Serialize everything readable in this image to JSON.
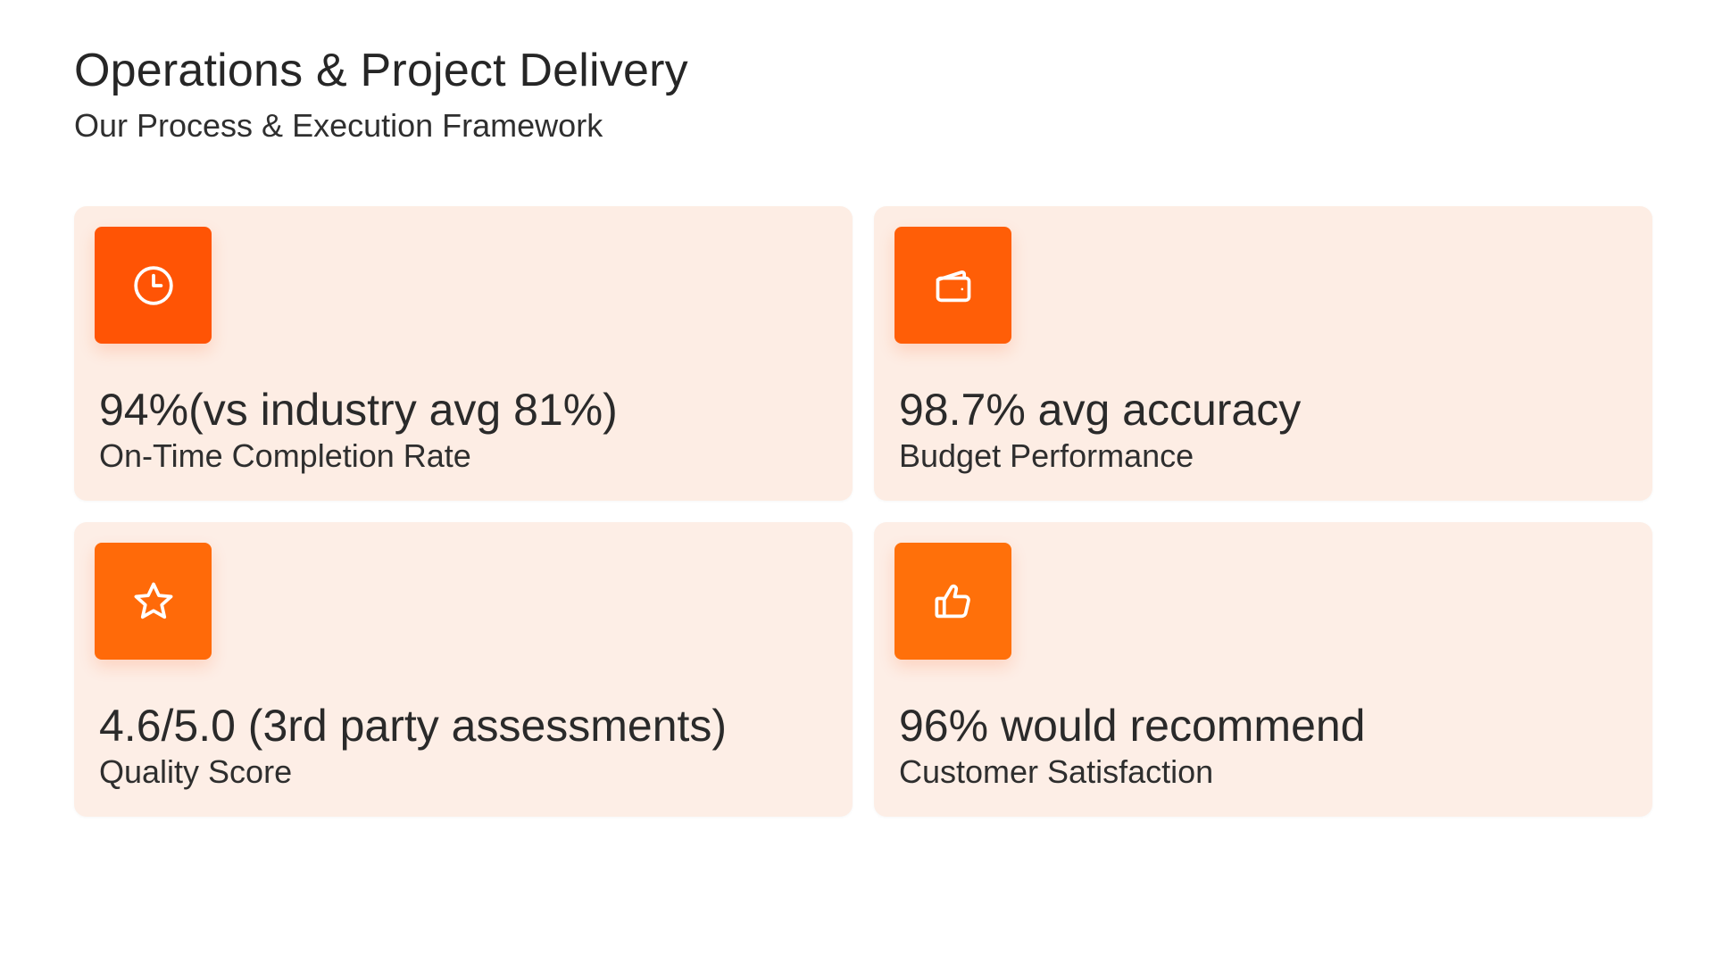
{
  "header": {
    "title": "Operations & Project Delivery",
    "subtitle": "Our Process & Execution Framework"
  },
  "cards": [
    {
      "icon": "clock-icon",
      "metric": "94%(vs industry avg 81%)",
      "label": "On-Time Completion Rate",
      "icon_color": "#ff5405"
    },
    {
      "icon": "wallet-icon",
      "metric": "98.7% avg accuracy",
      "label": "Budget Performance",
      "icon_color": "#ff5e07"
    },
    {
      "icon": "star-icon",
      "metric": "4.6/5.0 (3rd party assessments)",
      "label": "Quality Score",
      "icon_color": "#ff6a09"
    },
    {
      "icon": "thumbs-up-icon",
      "metric": "96% would recommend",
      "label": "Customer Satisfaction",
      "icon_color": "#ff700a"
    }
  ],
  "colors": {
    "card_background": "#fdede4",
    "title_text": "#262626",
    "body_text": "#2e2e2e"
  }
}
